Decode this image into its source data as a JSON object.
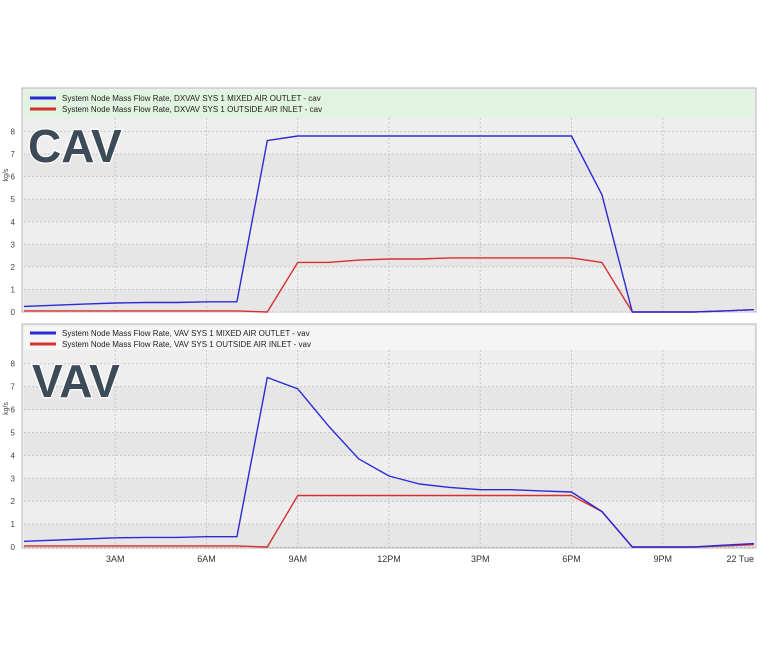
{
  "chart_data": [
    {
      "type": "line",
      "overlay_label": "CAV",
      "ylabel": "kg/s",
      "ylim": [
        0,
        8.6
      ],
      "yticks": [
        0,
        1,
        2,
        3,
        4,
        5,
        6,
        7,
        8
      ],
      "xlim": [
        0,
        24
      ],
      "xticks": [],
      "grid": true,
      "legend_position": "top",
      "series": [
        {
          "name": "System Node Mass Flow Rate, DXVAV SYS 1 MIXED AIR OUTLET - cav",
          "color": "#2b2bd6",
          "x": [
            0,
            2,
            3,
            4,
            5,
            6,
            7,
            8,
            9,
            10,
            11,
            12,
            13,
            14,
            15,
            16,
            17,
            18,
            19,
            20,
            21,
            22,
            23,
            24
          ],
          "y": [
            0.25,
            0.35,
            0.4,
            0.42,
            0.42,
            0.45,
            0.45,
            7.6,
            7.8,
            7.8,
            7.8,
            7.8,
            7.8,
            7.8,
            7.8,
            7.8,
            7.8,
            7.8,
            5.2,
            0.0,
            0.0,
            0.0,
            0.05,
            0.1
          ]
        },
        {
          "name": "System Node Mass Flow Rate, DXVAV SYS 1 OUTSIDE AIR INLET - cav",
          "color": "#d63030",
          "x": [
            0,
            2,
            3,
            4,
            5,
            6,
            7,
            8,
            9,
            10,
            11,
            12,
            13,
            14,
            15,
            16,
            17,
            18,
            19,
            20,
            21,
            22,
            23,
            24
          ],
          "y": [
            0.05,
            0.05,
            0.05,
            0.05,
            0.05,
            0.05,
            0.05,
            0.0,
            2.2,
            2.2,
            2.3,
            2.35,
            2.35,
            2.4,
            2.4,
            2.4,
            2.4,
            2.4,
            2.2,
            0.0,
            0.0,
            0.0,
            0.05,
            0.1
          ]
        }
      ]
    },
    {
      "type": "line",
      "overlay_label": "VAV",
      "ylabel": "kg/s",
      "ylim": [
        0,
        8.6
      ],
      "yticks": [
        0,
        1,
        2,
        3,
        4,
        5,
        6,
        7,
        8
      ],
      "xlim": [
        0,
        24
      ],
      "xticks": [
        {
          "x": 3,
          "label": "3AM"
        },
        {
          "x": 6,
          "label": "6AM"
        },
        {
          "x": 9,
          "label": "9AM"
        },
        {
          "x": 12,
          "label": "12PM"
        },
        {
          "x": 15,
          "label": "3PM"
        },
        {
          "x": 18,
          "label": "6PM"
        },
        {
          "x": 21,
          "label": "9PM"
        },
        {
          "x": 24,
          "label": "22 Tue"
        }
      ],
      "grid": true,
      "legend_position": "top",
      "series": [
        {
          "name": "System Node Mass Flow Rate, VAV SYS 1 MIXED AIR OUTLET - vav",
          "color": "#2b2bd6",
          "x": [
            0,
            2,
            3,
            4,
            5,
            6,
            7,
            8,
            9,
            10,
            11,
            12,
            13,
            14,
            15,
            16,
            17,
            18,
            19,
            20,
            21,
            22,
            23,
            24
          ],
          "y": [
            0.25,
            0.35,
            0.4,
            0.42,
            0.42,
            0.45,
            0.45,
            7.4,
            6.9,
            5.3,
            3.85,
            3.1,
            2.75,
            2.6,
            2.5,
            2.5,
            2.45,
            2.4,
            1.55,
            0.0,
            0.0,
            0.0,
            0.08,
            0.15
          ]
        },
        {
          "name": "System Node Mass Flow Rate, VAV SYS 1 OUTSIDE AIR INLET - vav",
          "color": "#d63030",
          "x": [
            0,
            2,
            3,
            4,
            5,
            6,
            7,
            8,
            9,
            10,
            11,
            12,
            13,
            14,
            15,
            16,
            17,
            18,
            19,
            20,
            21,
            22,
            23,
            24
          ],
          "y": [
            0.05,
            0.05,
            0.05,
            0.05,
            0.05,
            0.05,
            0.05,
            0.0,
            2.25,
            2.25,
            2.25,
            2.25,
            2.25,
            2.25,
            2.25,
            2.25,
            2.25,
            2.25,
            1.55,
            0.0,
            0.0,
            0.0,
            0.05,
            0.1
          ]
        }
      ]
    }
  ]
}
